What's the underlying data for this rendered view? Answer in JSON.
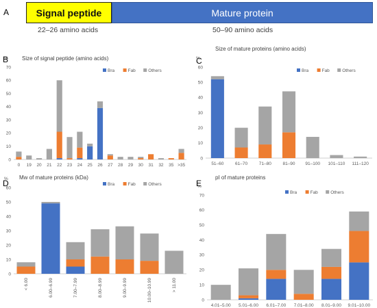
{
  "banner": {
    "panel_label": "A",
    "signal_label": "Signal peptide",
    "mature_label": "Mature protein",
    "signal_range": "22–26 amino acids",
    "mature_range": "50–90 amino acids"
  },
  "colors": {
    "Bra": "#4472c4",
    "Fab": "#ed7d31",
    "Others": "#a5a5a5"
  },
  "chart_data": [
    {
      "panel": "B",
      "type": "bar",
      "stacked": true,
      "title": "Size of signal peptide (amino acids)",
      "unit": "%",
      "ylim": [
        0,
        70
      ],
      "yticks": [
        0,
        10,
        20,
        30,
        40,
        50,
        60,
        70
      ],
      "legend_position": "top-right",
      "categories": [
        "0",
        "19",
        "20",
        "21",
        "22",
        "23",
        "24",
        "25",
        "26",
        "27",
        "28",
        "29",
        "30",
        "31",
        "32",
        "35",
        ">35"
      ],
      "series": [
        {
          "name": "Bra",
          "values": [
            0,
            0,
            0,
            0,
            1,
            0,
            1,
            10,
            39,
            0,
            0,
            0,
            0,
            0,
            0,
            0,
            0
          ]
        },
        {
          "name": "Fab",
          "values": [
            2,
            0,
            0,
            0,
            20,
            1,
            8,
            0,
            0,
            3,
            0,
            0,
            1,
            4,
            0,
            1,
            5
          ]
        },
        {
          "name": "Others",
          "values": [
            4,
            3,
            1,
            8,
            39,
            16,
            12,
            2,
            5,
            1,
            2,
            2,
            1,
            0,
            1,
            0,
            3
          ]
        }
      ]
    },
    {
      "panel": "C",
      "type": "bar",
      "stacked": true,
      "title": "Size of mature proteins (amino acids)",
      "unit": "%",
      "ylim": [
        0,
        60
      ],
      "yticks": [
        0,
        10,
        20,
        30,
        40,
        50,
        60
      ],
      "legend_position": "top-right",
      "categories": [
        "51–60",
        "61–70",
        "71–80",
        "81–90",
        "91–100",
        "101–110",
        "111–120"
      ],
      "series": [
        {
          "name": "Bra",
          "values": [
            52,
            0,
            0,
            0,
            0,
            0,
            0
          ]
        },
        {
          "name": "Fab",
          "values": [
            0,
            7,
            9,
            17,
            0,
            0,
            0
          ]
        },
        {
          "name": "Others",
          "values": [
            2,
            13,
            25,
            27,
            14,
            2,
            1
          ]
        }
      ]
    },
    {
      "panel": "D",
      "type": "bar",
      "stacked": true,
      "title": "Mw of mature proteins (kDa)",
      "unit": "%",
      "ylim": [
        0,
        60
      ],
      "yticks": [
        0,
        10,
        20,
        30,
        40,
        50,
        60
      ],
      "legend_position": "top-right",
      "categories": [
        "< 6.00",
        "6.00–6.99",
        "7.00–7.99",
        "8.00–8.99",
        "9.00–9.99",
        "10.00–10.99",
        "> 11.00"
      ],
      "series": [
        {
          "name": "Bra",
          "values": [
            0,
            49,
            5,
            0,
            0,
            0,
            0
          ]
        },
        {
          "name": "Fab",
          "values": [
            5,
            0,
            5,
            12,
            10,
            9,
            0
          ]
        },
        {
          "name": "Others",
          "values": [
            3,
            1,
            12,
            19,
            23,
            19,
            16
          ]
        }
      ]
    },
    {
      "panel": "E",
      "type": "bar",
      "stacked": true,
      "title": "pI of mature proteins",
      "unit": "%",
      "ylim": [
        0,
        70
      ],
      "yticks": [
        0,
        10,
        20,
        30,
        40,
        50,
        60,
        70
      ],
      "legend_position": "top-right",
      "categories": [
        "4.01–5.00",
        "5.01–6.00",
        "6.01–7.00",
        "7.01–8.00",
        "8.01–9.00",
        "9.01–10.00"
      ],
      "series": [
        {
          "name": "Bra",
          "values": [
            0,
            1,
            14,
            0,
            14,
            25
          ]
        },
        {
          "name": "Fab",
          "values": [
            0,
            2,
            6,
            4,
            8,
            21
          ]
        },
        {
          "name": "Others",
          "values": [
            10,
            18,
            24,
            16,
            12,
            13
          ]
        }
      ]
    }
  ]
}
